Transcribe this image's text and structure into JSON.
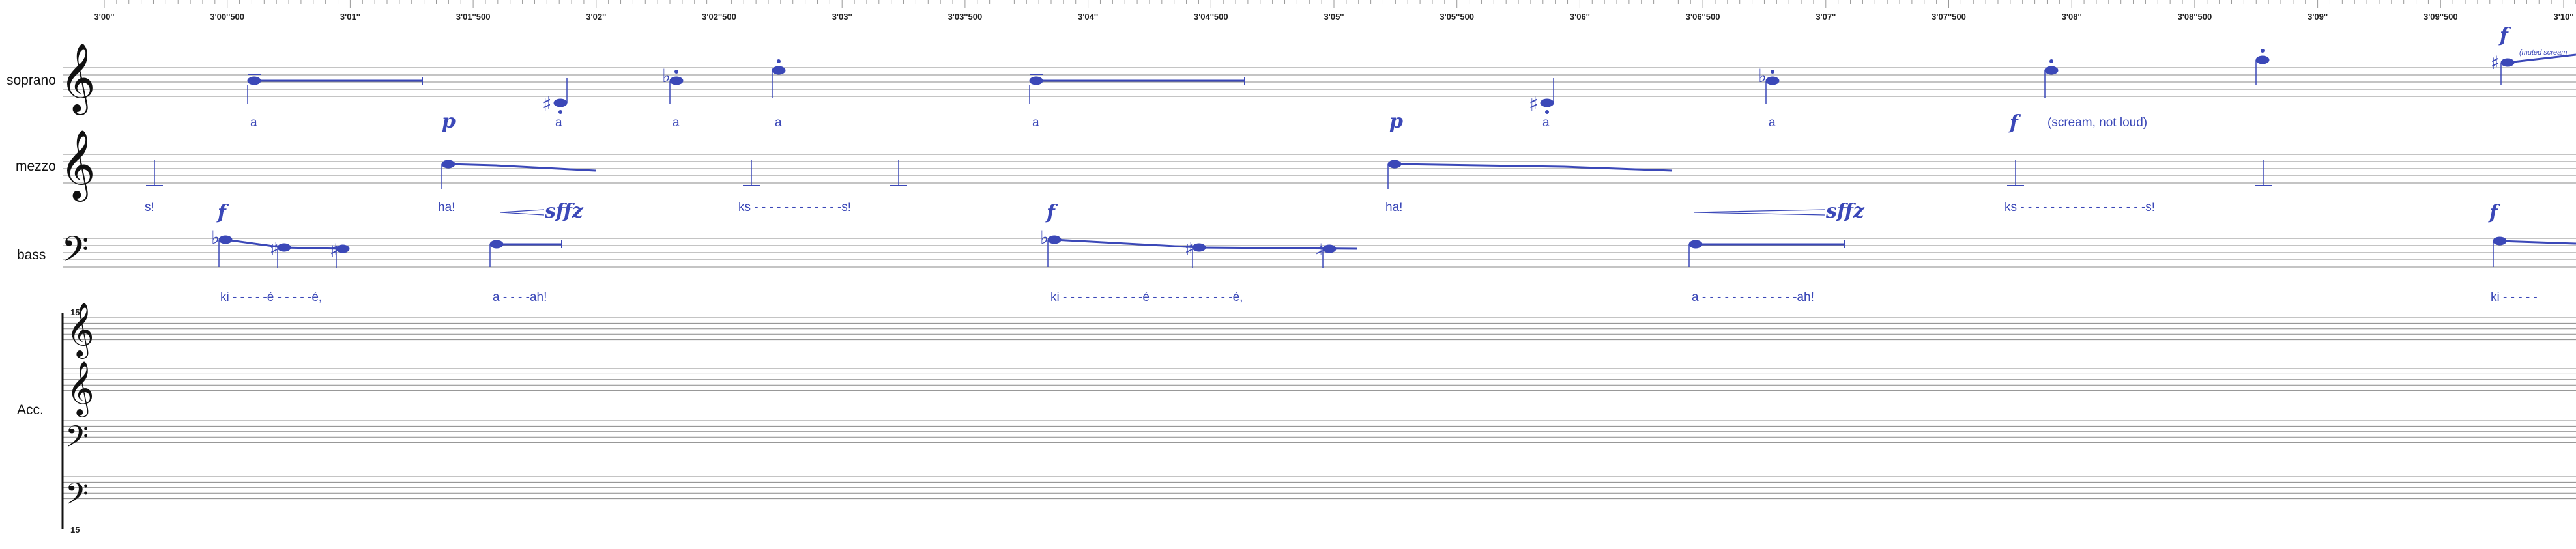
{
  "timeline": {
    "labels": [
      "3'00''",
      "3'00''500",
      "3'01''",
      "3'01''500",
      "3'02''",
      "3'02''500",
      "3'03''",
      "3'03''500",
      "3'04''",
      "3'04''500",
      "3'05''",
      "3'05''500",
      "3'06''",
      "3'06''500",
      "3'07''",
      "3'07''500",
      "3'08''",
      "3'08''500",
      "3'09''",
      "3'09''500",
      "3'10''"
    ]
  },
  "staves": {
    "soprano": "soprano",
    "mezzo": "mezzo",
    "bass": "bass",
    "acc": "Acc."
  },
  "accompaniment": {
    "ottava_top": "15",
    "ottava_bottom": "15"
  },
  "soprano": {
    "lyrics": [
      "a",
      "a",
      "a",
      "a",
      "a",
      "a",
      "a",
      "(scream, not loud)"
    ],
    "dynamics": [
      "p",
      "p",
      "f",
      "f"
    ],
    "annotation": "(muted scream"
  },
  "mezzo": {
    "lyrics": [
      "s!",
      "ha!",
      "ks - - - - - - - - - - - -s!",
      "ha!",
      "ks - - - - - - - - - - - - - - - - -s!"
    ],
    "dynamics": [
      "sffz",
      "sffz"
    ]
  },
  "bass": {
    "lyrics": [
      "ki - - - - -é - - - - -é,",
      "a - - - -ah!",
      "ki - - - - - - - - - - -é - - - - - - - - - - -é,",
      "a - - - - - - - - - - - - -ah!",
      "ki - - - - -"
    ],
    "dynamics": [
      "f",
      "f",
      "f"
    ]
  },
  "colors": {
    "notes": "#3b48b8",
    "staff": "#888888",
    "text": "#111111"
  }
}
